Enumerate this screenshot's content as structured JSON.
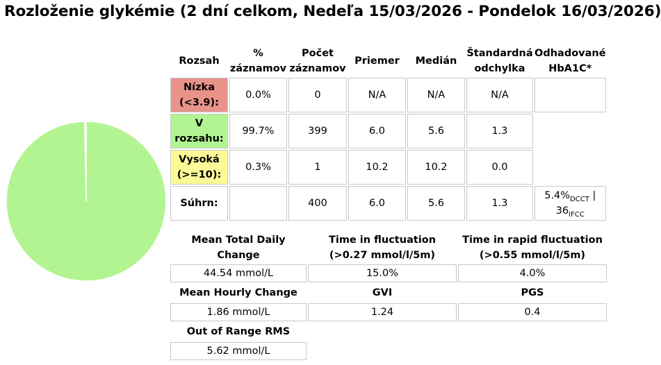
{
  "title": "Rozloženie glykémie (2 dní celkom, Nedeľa 15/03/2026 - Pondelok 16/03/2026)",
  "colors": {
    "low": "#e8928a",
    "in_range": "#b2f492",
    "high": "#fbfa96",
    "cell_border": "#c8c8c8"
  },
  "pie": {
    "slices": [
      {
        "label": "Nízka",
        "percent": 0.0,
        "color": "#e8928a"
      },
      {
        "label": "V rozsahu",
        "percent": 99.7,
        "color": "#b2f492"
      },
      {
        "label": "Vysoká",
        "percent": 0.3,
        "color": "#fbfa96"
      }
    ]
  },
  "table": {
    "headers": {
      "range_line1": "Rozsah",
      "percent_line1": "%",
      "percent_line2": "záznamov",
      "count_line1": "Počet",
      "count_line2": "záznamov",
      "mean": "Priemer",
      "median": "Medián",
      "sd_line1": "Štandardná",
      "sd_line2": "odchylka",
      "hba1c_line1": "Odhadované",
      "hba1c_line2": "HbA1C*"
    },
    "rows": {
      "low": {
        "label_line1": "Nízka",
        "label_line2": "(<3.9):",
        "percent": "0.0%",
        "count": "0",
        "mean": "N/A",
        "median": "N/A",
        "sd": "N/A"
      },
      "in": {
        "label_line1": "V",
        "label_line2": "rozsahu:",
        "percent": "99.7%",
        "count": "399",
        "mean": "6.0",
        "median": "5.6",
        "sd": "1.3"
      },
      "high": {
        "label_line1": "Vysoká",
        "label_line2": "(>=10):",
        "percent": "0.3%",
        "count": "1",
        "mean": "10.2",
        "median": "10.2",
        "sd": "0.0"
      },
      "total": {
        "label": "Súhrn:",
        "count": "400",
        "mean": "6.0",
        "median": "5.6",
        "sd": "1.3",
        "hba1c_dcct": "5.4%",
        "dcct_sub": "DCCT",
        "separator": " |",
        "hba1c_ifcc": "36",
        "ifcc_sub": "IFCC"
      }
    }
  },
  "stats": {
    "mean_total_daily_change": {
      "label_line1": "Mean Total Daily",
      "label_line2": "Change",
      "value": "44.54 mmol/L"
    },
    "time_in_fluctuation": {
      "label_line1": "Time in fluctuation",
      "label_line2": "(>0.27 mmol/l/5m)",
      "value": "15.0%"
    },
    "time_in_rapid_fluctuation": {
      "label_line1": "Time in rapid fluctuation",
      "label_line2": "(>0.55 mmol/l/5m)",
      "value": "4.0%"
    },
    "mean_hourly_change": {
      "label": "Mean Hourly Change",
      "value": "1.86 mmol/L"
    },
    "gvi": {
      "label": "GVI",
      "value": "1.24"
    },
    "pgs": {
      "label": "PGS",
      "value": "0.4"
    },
    "out_of_range_rms": {
      "label": "Out of Range RMS",
      "value": "5.62 mmol/L"
    }
  }
}
